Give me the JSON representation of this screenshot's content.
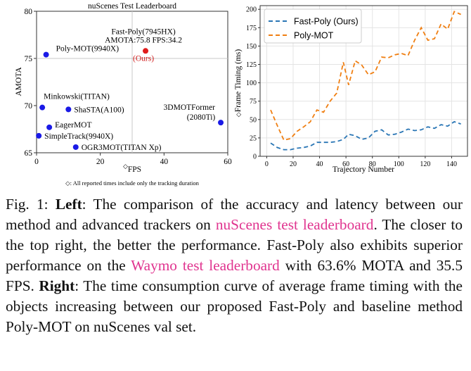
{
  "left_chart": {
    "type": "scatter",
    "title": "nuScenes Test Leaderboard",
    "xlabel": "FPS",
    "xlabel_prefix": "◇",
    "ylabel": "AMOTA",
    "xlim": [
      0,
      60
    ],
    "ylim": [
      65,
      80
    ],
    "xticks": [
      0,
      20,
      40,
      60
    ],
    "yticks": [
      65,
      70,
      75,
      80
    ],
    "colors": {
      "baseline": "#1a1ae6",
      "ours": "#e01b1b",
      "ours_label": "#d01818"
    },
    "points": [
      {
        "name": "Poly-MOT(9940X)",
        "x": 3.0,
        "y": 75.4,
        "highlight": false
      },
      {
        "name": "Minkowski(TITAN)",
        "x": 1.8,
        "y": 69.8,
        "highlight": false
      },
      {
        "name": "ShaSTA(A100)",
        "x": 10.0,
        "y": 69.6,
        "highlight": false
      },
      {
        "name": "EagerMOT",
        "x": 4.0,
        "y": 67.7,
        "highlight": false
      },
      {
        "name": "SimpleTrack(9940X)",
        "x": 0.7,
        "y": 66.8,
        "highlight": false
      },
      {
        "name": "OGR3MOT(TITAN Xp)",
        "x": 12.3,
        "y": 65.6,
        "highlight": false
      },
      {
        "name": "3DMOTFormer",
        "sublabel": "(2080Ti)",
        "x": 57.8,
        "y": 68.2,
        "highlight": false
      },
      {
        "name": "Fast-Poly(7945HX)",
        "sublabel": "AMOTA:75.8 FPS:34.2",
        "tag": "(Ours)",
        "x": 34.2,
        "y": 75.8,
        "highlight": true
      }
    ],
    "footnote": "◇: All reported times include only the tracking duration"
  },
  "right_chart": {
    "type": "line",
    "xlabel": "Trajectory Number",
    "ylabel": "Frame Timing (ms)",
    "ylabel_prefix": "◇",
    "xlim": [
      -5,
      152
    ],
    "ylim": [
      0,
      205
    ],
    "xticks": [
      0,
      20,
      40,
      60,
      80,
      100,
      120,
      140
    ],
    "yticks": [
      0,
      25,
      50,
      75,
      100,
      125,
      150,
      175,
      200
    ],
    "legend_position": "top-left",
    "series": [
      {
        "name": "Fast-Poly (Ours)",
        "color": "#2a76b5",
        "x": [
          3,
          8,
          13,
          18,
          23,
          28,
          33,
          38,
          43,
          48,
          53,
          58,
          62,
          67,
          72,
          77,
          82,
          87,
          92,
          97,
          102,
          107,
          112,
          117,
          122,
          127,
          132,
          137,
          142,
          147
        ],
        "y": [
          18,
          12,
          9,
          9,
          11,
          12,
          14,
          19,
          19,
          19,
          20,
          23,
          30,
          28,
          23,
          25,
          34,
          36,
          29,
          30,
          33,
          37,
          35,
          36,
          40,
          38,
          43,
          41,
          47,
          44
        ]
      },
      {
        "name": "Poly-MOT",
        "color": "#f07f12",
        "x": [
          3,
          8,
          13,
          18,
          23,
          28,
          33,
          38,
          43,
          48,
          53,
          58,
          62,
          67,
          72,
          77,
          82,
          87,
          92,
          97,
          102,
          107,
          112,
          117,
          122,
          127,
          132,
          137,
          142,
          147
        ],
        "y": [
          63,
          42,
          22,
          24,
          34,
          40,
          47,
          63,
          60,
          75,
          86,
          128,
          97,
          130,
          124,
          111,
          115,
          135,
          134,
          138,
          140,
          137,
          158,
          175,
          158,
          160,
          180,
          173,
          197,
          193
        ]
      }
    ]
  },
  "caption": {
    "prefix": "Fig. 1: ",
    "left_label": "Left",
    "text1": ": The comparison of the accuracy and latency between our method and advanced trackers on ",
    "link1": "nuScenes test leaderboard",
    "text2": ". The closer to the top right, the better the performance. Fast-Poly also exhibits superior performance on the ",
    "link2": "Waymo test leaderboard",
    "text3": " with 63.6% MOTA and 35.5 FPS. ",
    "right_label": "Right",
    "text4": ": The time consumption curve of average frame timing with the objects increasing between our proposed Fast-Poly and baseline method Poly-MOT on nuScenes val set."
  }
}
